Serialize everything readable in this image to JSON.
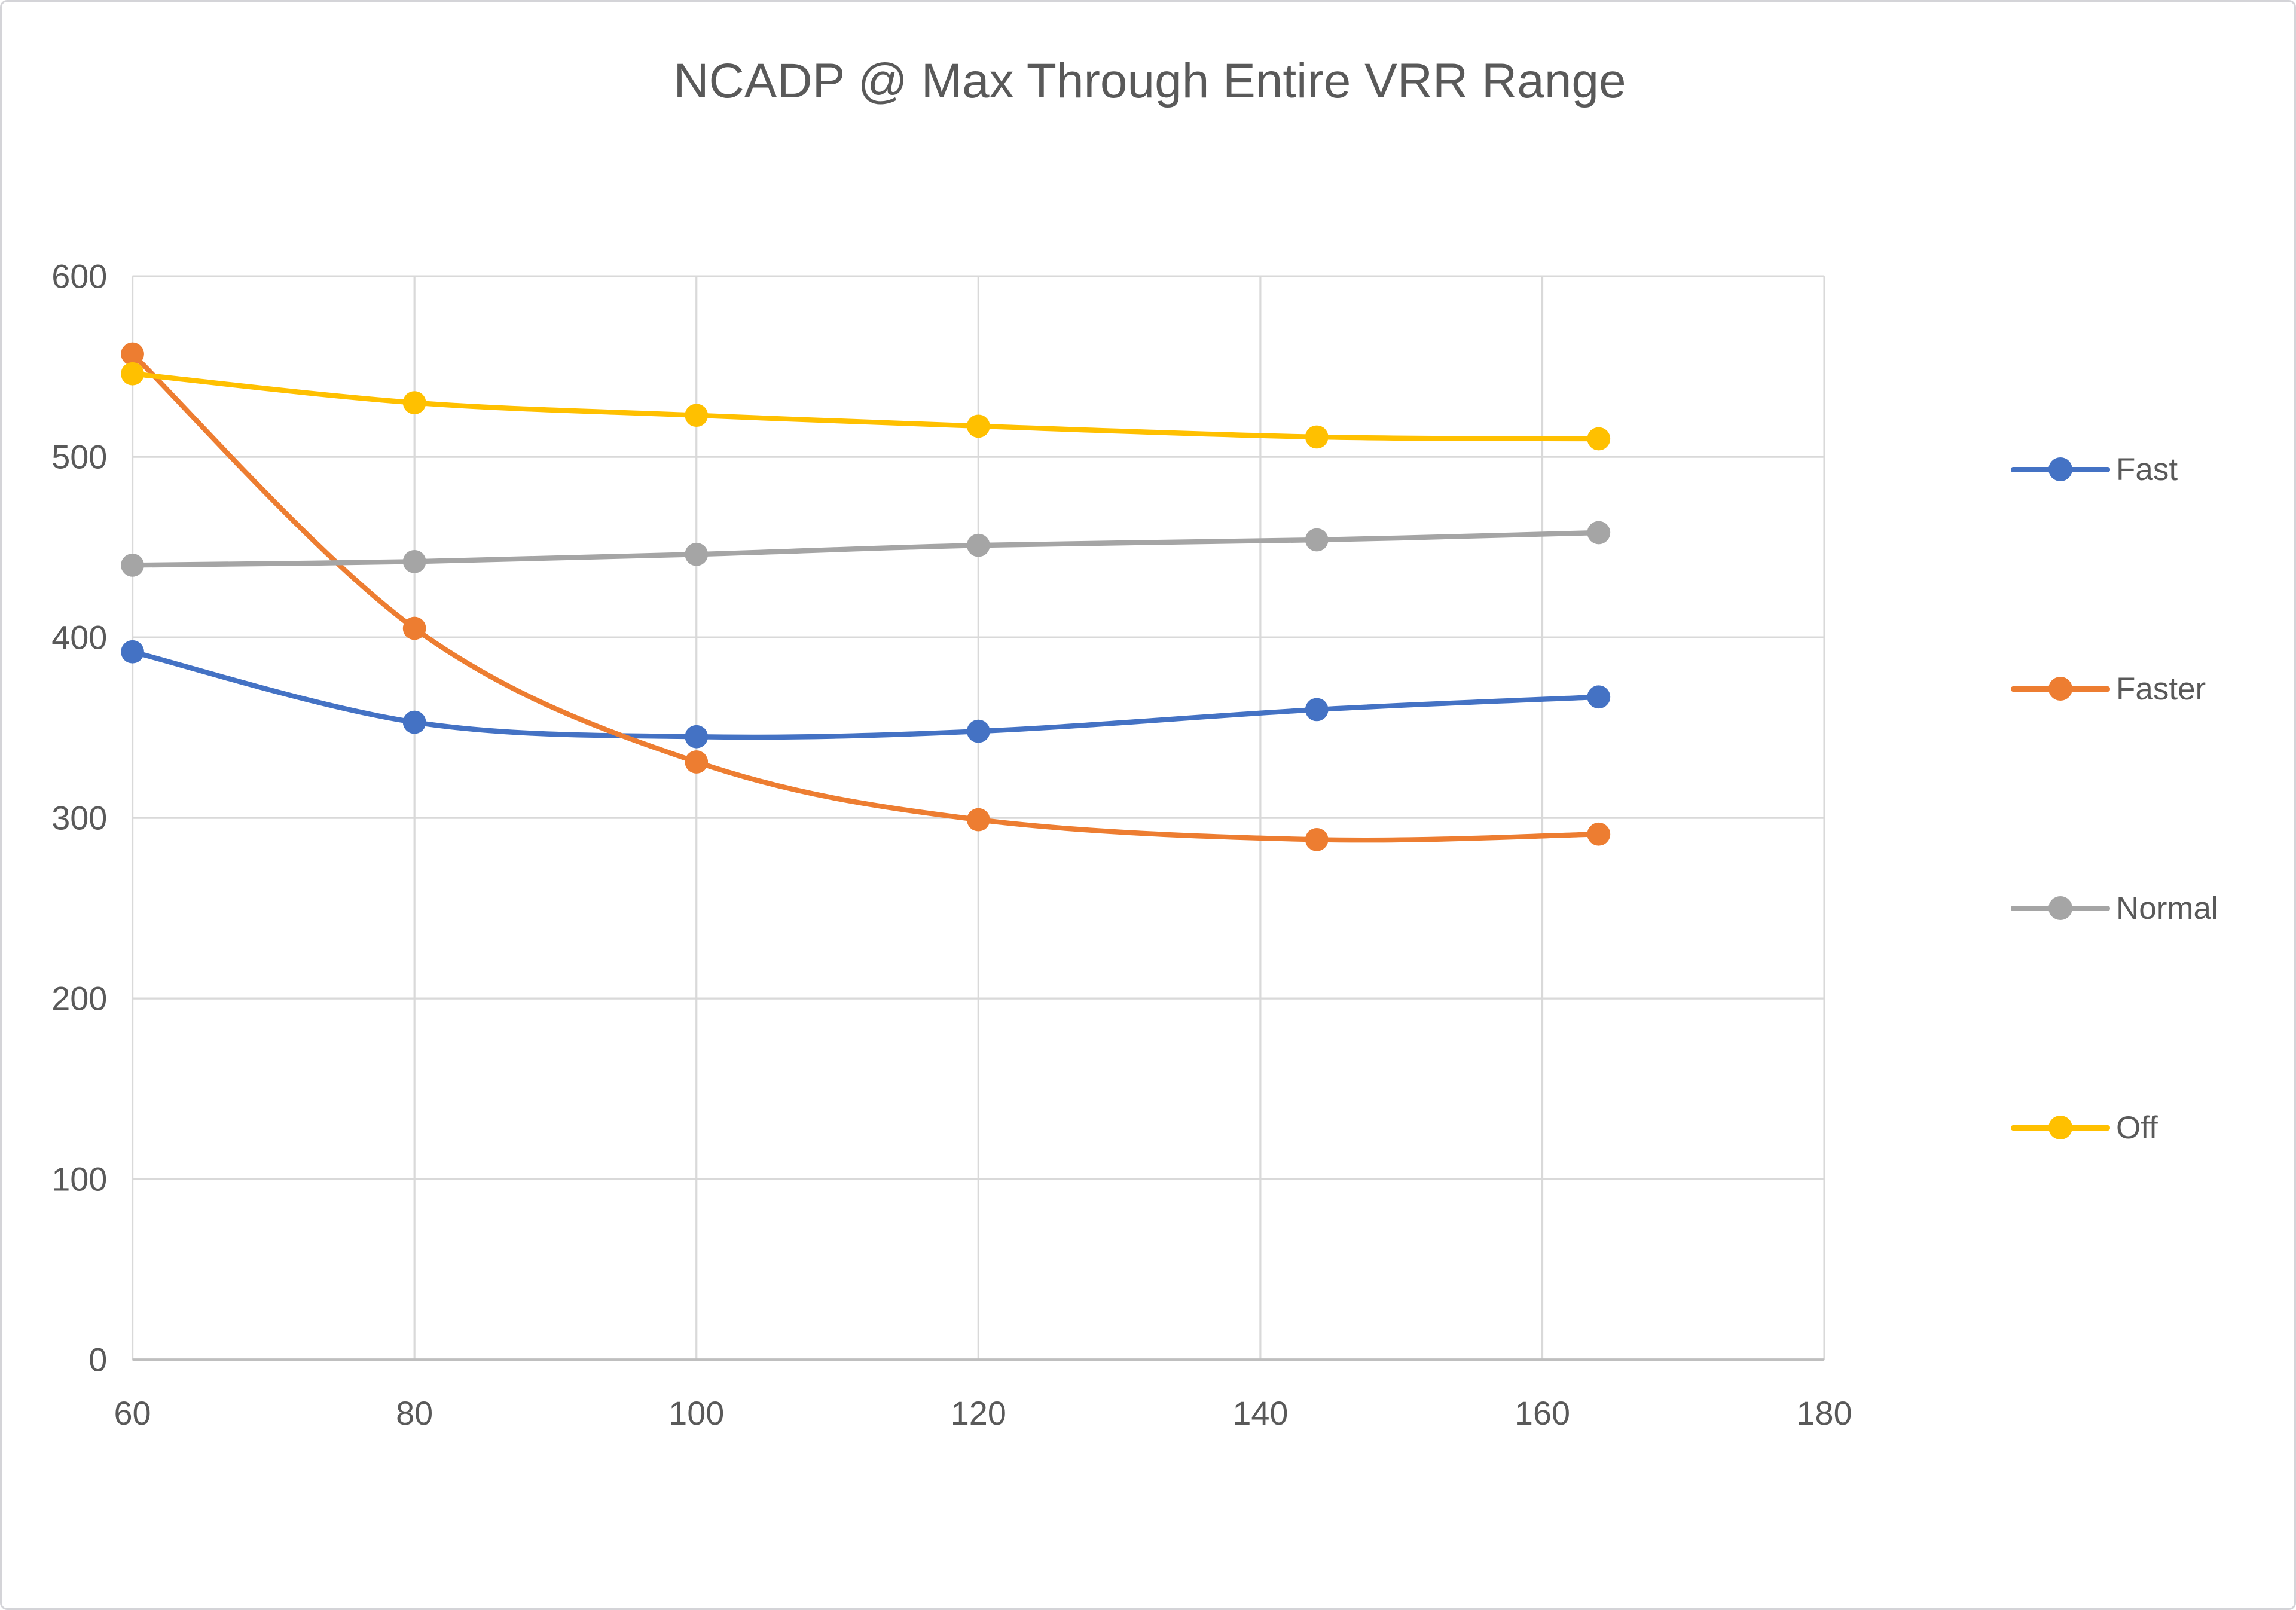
{
  "chart_data": {
    "type": "line",
    "title": "NCADP @ Max Through Entire VRR Range",
    "x": [
      60,
      80,
      100,
      120,
      144,
      164
    ],
    "series": [
      {
        "name": "Fast",
        "color": "#4472C4",
        "values": [
          392,
          353,
          345,
          348,
          360,
          367
        ]
      },
      {
        "name": "Faster",
        "color": "#ED7D31",
        "values": [
          557,
          405,
          331,
          299,
          288,
          291
        ]
      },
      {
        "name": "Normal",
        "color": "#A5A5A5",
        "values": [
          440,
          442,
          446,
          451,
          454,
          458
        ]
      },
      {
        "name": "Off",
        "color": "#FFC000",
        "values": [
          546,
          530,
          523,
          517,
          511,
          510
        ]
      }
    ],
    "xlim": [
      60,
      180
    ],
    "ylim": [
      0,
      600
    ],
    "xticks": [
      60,
      80,
      100,
      120,
      140,
      160,
      180
    ],
    "yticks": [
      0,
      100,
      200,
      300,
      400,
      500,
      600
    ],
    "grid": true,
    "smooth": true,
    "marker": "circle",
    "legend_position": "right",
    "colors": {
      "grid": "#D9D9D9",
      "axis": "#BFBFBF",
      "text": "#595959"
    }
  }
}
